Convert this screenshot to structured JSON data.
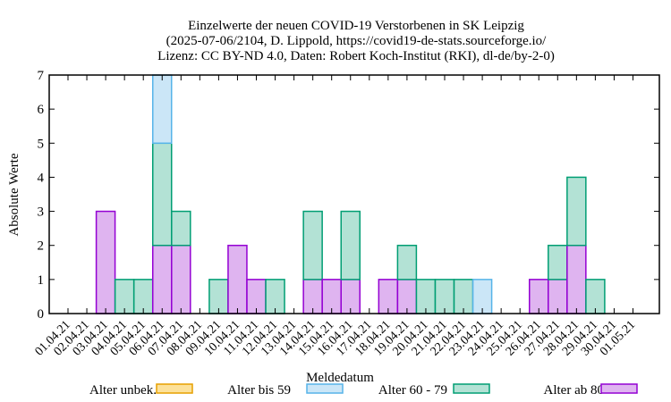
{
  "chart_data": {
    "type": "bar",
    "stacked": true,
    "title_lines": [
      "Einzelwerte der neuen COVID-19 Verstorbenen in SK Leipzig",
      "(2025-07-06/2104, D. Lippold, https://covid19-de-stats.sourceforge.io/",
      "Lizenz: CC BY-ND 4.0, Daten: Robert Koch-Institut (RKI), dl-de/by-2-0)"
    ],
    "xlabel": "Meldedatum",
    "ylabel": "Absolute Werte",
    "ylim": [
      0,
      7
    ],
    "yticks": [
      0,
      1,
      2,
      3,
      4,
      5,
      6,
      7
    ],
    "categories": [
      "01.04.21",
      "02.04.21",
      "03.04.21",
      "04.04.21",
      "05.04.21",
      "06.04.21",
      "07.04.21",
      "08.04.21",
      "09.04.21",
      "10.04.21",
      "11.04.21",
      "12.04.21",
      "13.04.21",
      "14.04.21",
      "15.04.21",
      "16.04.21",
      "17.04.21",
      "18.04.21",
      "19.04.21",
      "20.04.21",
      "21.04.21",
      "22.04.21",
      "23.04.21",
      "24.04.21",
      "25.04.21",
      "26.04.21",
      "27.04.21",
      "28.04.21",
      "29.04.21",
      "30.04.21",
      "01.05.21"
    ],
    "series": [
      {
        "name": "Alter ab 80",
        "fill": "#dfb4f0",
        "stroke": "#9400d3",
        "values": [
          0,
          0,
          3,
          0,
          0,
          2,
          2,
          0,
          0,
          2,
          1,
          0,
          0,
          1,
          1,
          1,
          0,
          1,
          1,
          0,
          0,
          0,
          0,
          0,
          0,
          1,
          1,
          2,
          0,
          0,
          0
        ]
      },
      {
        "name": "Alter 60 - 79",
        "fill": "#b3e2d5",
        "stroke": "#009e73",
        "values": [
          0,
          0,
          0,
          1,
          1,
          3,
          1,
          0,
          1,
          0,
          0,
          1,
          0,
          2,
          0,
          2,
          0,
          0,
          1,
          1,
          1,
          1,
          0,
          0,
          0,
          0,
          1,
          2,
          1,
          0,
          0
        ]
      },
      {
        "name": "Alter bis 59",
        "fill": "#cbe6f7",
        "stroke": "#56b4e9",
        "values": [
          0,
          0,
          0,
          0,
          0,
          2,
          0,
          0,
          0,
          0,
          0,
          0,
          0,
          0,
          0,
          0,
          0,
          0,
          0,
          0,
          0,
          0,
          1,
          0,
          0,
          0,
          0,
          0,
          0,
          0,
          0
        ]
      },
      {
        "name": "Alter unbek.",
        "fill": "#fce19a",
        "stroke": "#e69f00",
        "values": [
          0,
          0,
          0,
          0,
          0,
          0,
          0,
          0,
          0,
          0,
          0,
          0,
          0,
          0,
          0,
          0,
          0,
          0,
          0,
          0,
          0,
          0,
          0,
          0,
          0,
          0,
          0,
          0,
          0,
          0,
          0
        ]
      }
    ],
    "legend_order": [
      "Alter unbek.",
      "Alter bis 59",
      "Alter 60 - 79",
      "Alter ab 80"
    ],
    "legend_placement": "bottom",
    "grid": false
  }
}
